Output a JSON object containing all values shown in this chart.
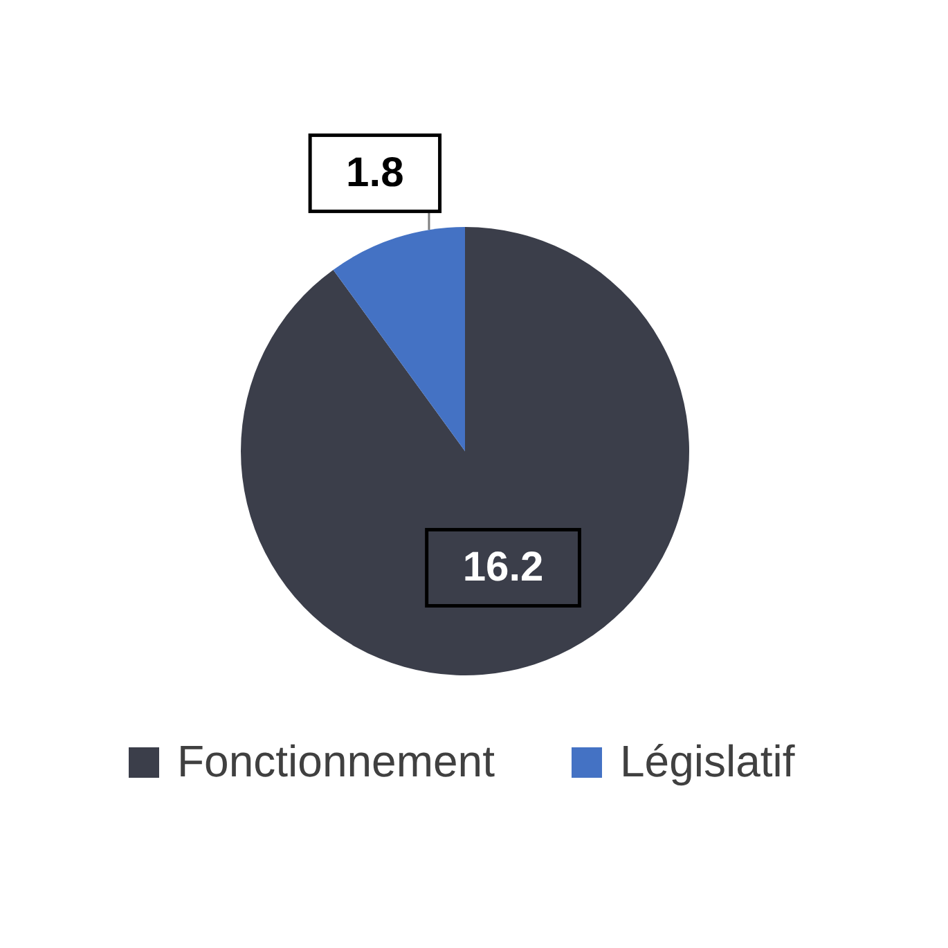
{
  "chart_data": {
    "type": "pie",
    "categories": [
      "Fonctionnement",
      "Législatif"
    ],
    "values": [
      16.2,
      1.8
    ],
    "colors": [
      "#3b3e4a",
      "#4472c4"
    ],
    "data_labels": true,
    "legend": "bottom"
  }
}
